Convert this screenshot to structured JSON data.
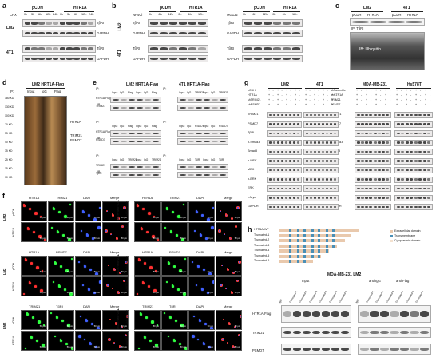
{
  "panels": {
    "a": {
      "letter": "a",
      "cond_label": "CHX",
      "groups": [
        "pCDH",
        "HTR1A"
      ],
      "times": [
        "0h",
        "3h",
        "6h",
        "12h",
        "24h",
        "0h",
        "3h",
        "6h",
        "12h",
        "24h"
      ],
      "cells": [
        "LM2",
        "4T1"
      ],
      "rows": [
        "TβRI",
        "GAPDH"
      ]
    },
    "b": {
      "letter": "b",
      "cond_left": "NH4Cl",
      "cond_right": "MG132",
      "groups": [
        "pCDH",
        "HTR1A",
        "pCDH",
        "HTR1A"
      ],
      "times": [
        "0h",
        "6h",
        "12h",
        "0h",
        "6h",
        "12h",
        "0h",
        "6h",
        "12h",
        "0h",
        "6h",
        "12h"
      ],
      "cells": [
        "LM2",
        "4T1"
      ],
      "rows": [
        "TβRI",
        "GAPDH"
      ]
    },
    "c": {
      "letter": "c",
      "cells": [
        "LM2",
        "4T1"
      ],
      "groups": [
        "pCDH",
        "HTR1A",
        "pCDH",
        "HTR1A"
      ],
      "ip": "IP: TβRI",
      "ib": "IB: Ubiquitin"
    },
    "d": {
      "letter": "d",
      "title": "LM2 HRT1A-Flag",
      "ip": "IP:",
      "lanes": [
        "Input",
        "IgG",
        "Flag"
      ],
      "markers": [
        "180 KD",
        "130 KD",
        "100 KD",
        "70 KD",
        "55 KD",
        "40 KD",
        "35 KD",
        "25 KD",
        "15 KD",
        "10 KD"
      ],
      "annots": [
        "HTR1A",
        "TRIM21",
        "PSMD7"
      ]
    },
    "e": {
      "letter": "e",
      "titles": [
        "LM2 HRT1A-Flag",
        "4T1 HRT1A-Flag"
      ],
      "blocks": [
        {
          "ip": "IP:",
          "lanes": [
            "Input",
            "IgG",
            "Flag",
            "Input",
            "IgG",
            "Flag"
          ],
          "rows": [
            "HTR1A-Flag",
            "TRIM21"
          ]
        },
        {
          "ip": "IP:",
          "lanes": [
            "Input",
            "IgG",
            "TRIM21",
            "Input",
            "IgG",
            "TRIM21"
          ],
          "rows": [
            "HTR1A-Flag",
            "TRIM21"
          ]
        },
        {
          "ip": "IP:",
          "lanes": [
            "Input",
            "IgG",
            "Flag",
            "Input",
            "IgG",
            "Flag"
          ],
          "rows": [
            "HTR1A-Flag",
            "PSMD7"
          ]
        },
        {
          "ip": "IP:",
          "lanes": [
            "Input",
            "IgG",
            "PSMD7",
            "Input",
            "IgG",
            "PSMD7"
          ],
          "rows": [
            "HTR1A-Flag",
            "PSMD7"
          ]
        },
        {
          "ip": "IP:",
          "lanes": [
            "Input",
            "IgG",
            "TRIM21",
            "Input",
            "IgG",
            "TRIM21"
          ],
          "rows": [
            "TRIM21",
            "TβRI"
          ]
        },
        {
          "ip": "IP:",
          "lanes": [
            "Input",
            "IgG",
            "TβRI",
            "Input",
            "IgG",
            "TβRI"
          ],
          "rows": [
            "TRIM21",
            "TβRI"
          ]
        }
      ],
      "ib": "IB"
    },
    "g": {
      "letter": "g",
      "cells": [
        "LM2",
        "4T1",
        "MDA-MB-231",
        "Hs578T"
      ],
      "cond_left": [
        "pCDH",
        "HTR1A",
        "shTRIM21",
        "shPSMD7"
      ],
      "cond_right": [
        "shScramble",
        "shHTR1A",
        "TRIM21",
        "PSMD7"
      ],
      "signs": [
        "+",
        "-",
        "+",
        "-",
        "+",
        "-",
        "+",
        "-"
      ],
      "rows": [
        "TRIM21",
        "PSMD7",
        "TβRI",
        "p-Smad3",
        "Smad3",
        "p-MEK",
        "MEK",
        "p-ERK",
        "ERK",
        "c-Myc",
        "GAPDH"
      ]
    },
    "f": {
      "letter": "f",
      "cells_left": [
        "LM2",
        "LM2",
        "LM2"
      ],
      "cells_right": [
        "MDA-MB-231",
        "MDA-MB-231",
        "MDA-MB-231"
      ],
      "row_conds_left": [
        "pCDH",
        "HTR1A"
      ],
      "row_conds_right": [
        "shScramble",
        "shHTR1A-1"
      ],
      "blocks": [
        [
          "HTR1A",
          "TRIM21",
          "DAPI",
          "Merge"
        ],
        [
          "HTR1A",
          "PSMD7",
          "DAPI",
          "Merge"
        ],
        [
          "TRIM21",
          "TβRI",
          "DAPI",
          "Merge"
        ]
      ],
      "scale": "50 μm"
    },
    "h": {
      "letter": "h",
      "constructs": [
        "HTR1A-WT",
        "Truncated-1",
        "Truncated-2",
        "Truncated-3",
        "Truncated-4",
        "Truncated-5",
        "Truncated-6"
      ],
      "legend": [
        {
          "label": "Extracellular domain",
          "color": "#e9c9ad"
        },
        {
          "label": "Transmembrane",
          "color": "#4a8fb6"
        },
        {
          "label": "Cytoplasmic domain",
          "color": "#f4e2d0"
        }
      ],
      "blot_title": "MDA-MB-231 LM2",
      "groups": [
        "Input",
        "anti-IgG",
        "anti-Flag"
      ],
      "lanes": [
        "IgG",
        "Truncated-1",
        "Truncated-2",
        "Truncated-3",
        "Truncated-4",
        "Truncated-5",
        "Truncated-6"
      ],
      "rows": [
        "HTR1A-Flag",
        "TRIM21",
        "PSMD7"
      ]
    }
  }
}
